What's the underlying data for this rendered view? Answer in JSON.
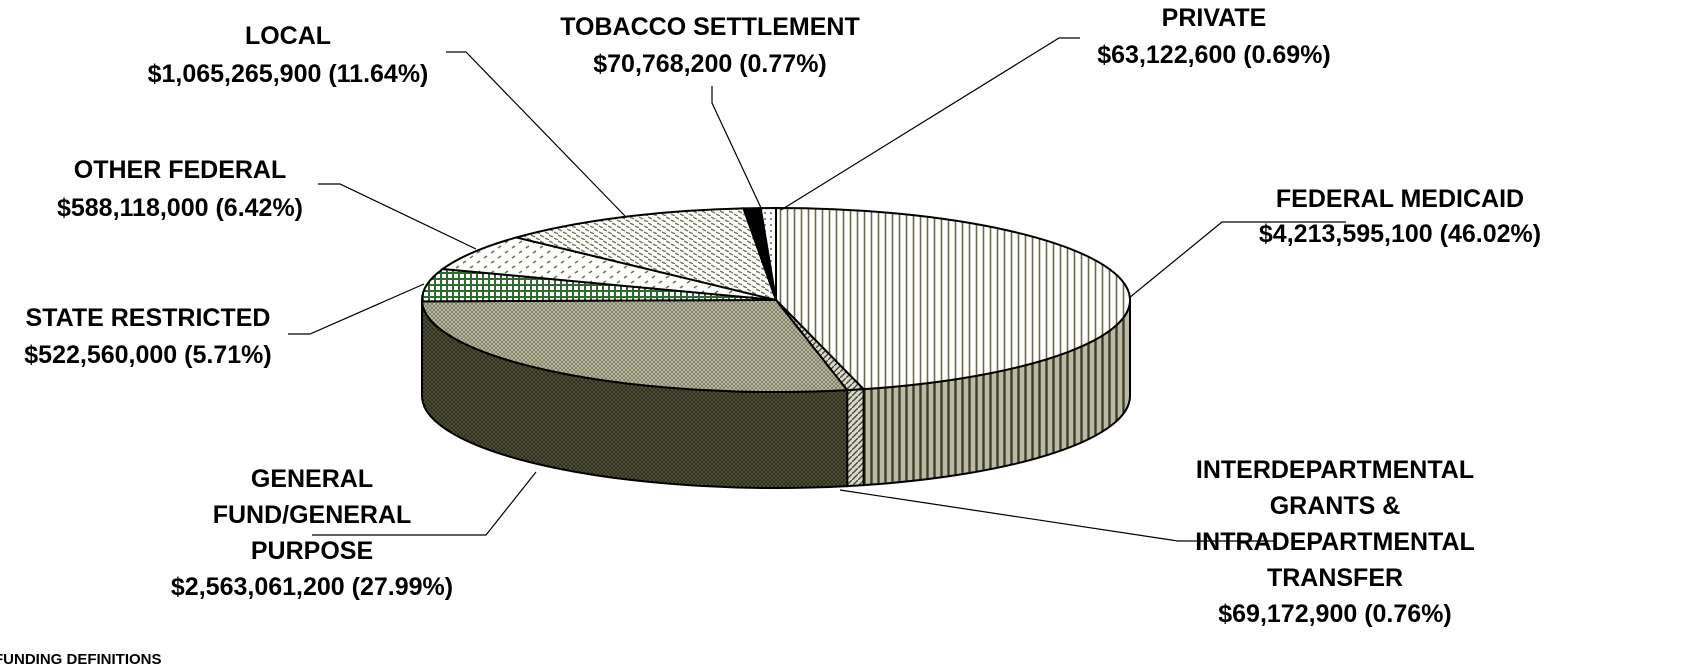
{
  "chart_data": {
    "type": "pie",
    "style": "3d-exploded-none",
    "slices": [
      {
        "label": "FEDERAL MEDICAID",
        "value": 4213595100,
        "value_text": "$4,213,595,100 (46.02%)",
        "percent": 46.02,
        "pattern": "vertical-lines",
        "color": "#6b6b45"
      },
      {
        "label": "INTERDEPARTMENTAL GRANTS & INTRADEPARTMENTAL TRANSFER",
        "value": 69172900,
        "value_text": "$69,172,900 (0.76%)",
        "percent": 0.76,
        "pattern": "diagonal-lines",
        "color": "#6b6b45"
      },
      {
        "label": "GENERAL FUND/GENERAL PURPOSE",
        "value": 2563061200,
        "value_text": "$2,563,061,200 (27.99%)",
        "percent": 27.99,
        "pattern": "fine-crosshatch",
        "color": "#8a8a6a"
      },
      {
        "label": "STATE RESTRICTED",
        "value": 522560000,
        "value_text": "$522,560,000 (5.71%)",
        "percent": 5.71,
        "pattern": "grid",
        "color": "#2e6b2e"
      },
      {
        "label": "OTHER FEDERAL",
        "value": 588118000,
        "value_text": "$588,118,000 (6.42%)",
        "percent": 6.42,
        "pattern": "dashes",
        "color": "#6b7a3a"
      },
      {
        "label": "LOCAL",
        "value": 1065265900,
        "value_text": "$1,065,265,900 (11.64%)",
        "percent": 11.64,
        "pattern": "diagonal-dashes",
        "color": "#7a7a5a"
      },
      {
        "label": "TOBACCO SETTLEMENT",
        "value": 70768200,
        "value_text": "$70,768,200 (0.77%)",
        "percent": 0.77,
        "pattern": "solid",
        "color": "#000000"
      },
      {
        "label": "PRIVATE",
        "value": 63122600,
        "value_text": "$63,122,600 (0.69%)",
        "percent": 0.69,
        "pattern": "sparse-dots",
        "color": "#8a8a6a"
      }
    ]
  },
  "labels": {
    "federal_medicaid": {
      "lines": [
        "FEDERAL MEDICAID",
        "$4,213,595,100 (46.02%)"
      ]
    },
    "interdepartmental": {
      "lines": [
        "INTERDEPARTMENTAL",
        "GRANTS &",
        "INTRADEPARTMENTAL",
        "TRANSFER",
        "$69,172,900 (0.76%)"
      ]
    },
    "general_fund": {
      "lines": [
        "GENERAL",
        "FUND/GENERAL",
        "PURPOSE",
        "$2,563,061,200 (27.99%)"
      ]
    },
    "state_restricted": {
      "lines": [
        "STATE RESTRICTED",
        "$522,560,000 (5.71%)"
      ]
    },
    "other_federal": {
      "lines": [
        "OTHER FEDERAL",
        "$588,118,000 (6.42%)"
      ]
    },
    "local": {
      "lines": [
        "LOCAL",
        "$1,065,265,900 (11.64%)"
      ]
    },
    "tobacco": {
      "lines": [
        "TOBACCO SETTLEMENT",
        "$70,768,200 (0.77%)"
      ]
    },
    "private": {
      "lines": [
        "PRIVATE",
        "$63,122,600 (0.69%)"
      ]
    }
  },
  "footer": {
    "text": "FUNDING DEFINITIONS"
  }
}
